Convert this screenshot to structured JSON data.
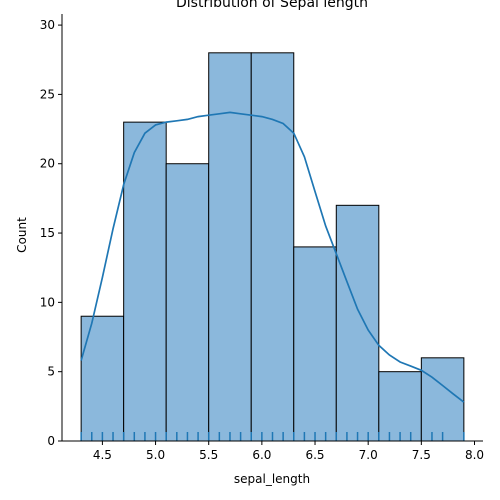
{
  "chart_data": {
    "type": "bar",
    "title": "Distribution of Sepal length",
    "xlabel": "sepal_length",
    "ylabel": "Count",
    "bin_edges": [
      4.3,
      4.7,
      5.1,
      5.5,
      5.9,
      6.3,
      6.7,
      7.1,
      7.5,
      7.9
    ],
    "values": [
      9,
      23,
      20,
      28,
      28,
      14,
      17,
      5,
      6
    ],
    "xlim": [
      4.12,
      8.08
    ],
    "ylim": [
      0,
      30.8
    ],
    "xticks": [
      4.5,
      5.0,
      5.5,
      6.0,
      6.5,
      7.0,
      7.5,
      8.0
    ],
    "xtick_labels": [
      "4.5",
      "5.0",
      "5.5",
      "6.0",
      "6.5",
      "7.0",
      "7.5",
      "8.0"
    ],
    "yticks": [
      0,
      5,
      10,
      15,
      20,
      25,
      30
    ],
    "ytick_labels": [
      "0",
      "5",
      "10",
      "15",
      "20",
      "25",
      "30"
    ],
    "kde": {
      "x": [
        4.3,
        4.4,
        4.5,
        4.6,
        4.7,
        4.8,
        4.9,
        5.0,
        5.1,
        5.2,
        5.3,
        5.4,
        5.5,
        5.6,
        5.7,
        5.8,
        5.9,
        6.0,
        6.1,
        6.2,
        6.3,
        6.4,
        6.5,
        6.6,
        6.7,
        6.8,
        6.9,
        7.0,
        7.1,
        7.2,
        7.3,
        7.4,
        7.5,
        7.6,
        7.7,
        7.8,
        7.9
      ],
      "y": [
        5.8,
        8.5,
        11.8,
        15.3,
        18.5,
        20.8,
        22.2,
        22.8,
        23.0,
        23.1,
        23.2,
        23.4,
        23.5,
        23.6,
        23.7,
        23.6,
        23.5,
        23.4,
        23.2,
        22.9,
        22.2,
        20.5,
        18.0,
        15.5,
        13.5,
        11.5,
        9.5,
        8.0,
        6.9,
        6.2,
        5.7,
        5.4,
        5.1,
        4.6,
        4.0,
        3.4,
        2.8
      ]
    },
    "rug": [
      4.3,
      4.4,
      4.5,
      4.6,
      4.7,
      4.8,
      4.9,
      5.0,
      5.1,
      5.2,
      5.3,
      5.4,
      5.5,
      5.6,
      5.7,
      5.8,
      5.9,
      6.0,
      6.1,
      6.2,
      6.3,
      6.4,
      6.5,
      6.6,
      6.7,
      6.8,
      6.9,
      7.0,
      7.1,
      7.2,
      7.3,
      7.4,
      7.6,
      7.7,
      7.9
    ],
    "bar_color": "#8bb8dc",
    "line_color": "#1f77b4",
    "grid": false,
    "legend": "none"
  }
}
